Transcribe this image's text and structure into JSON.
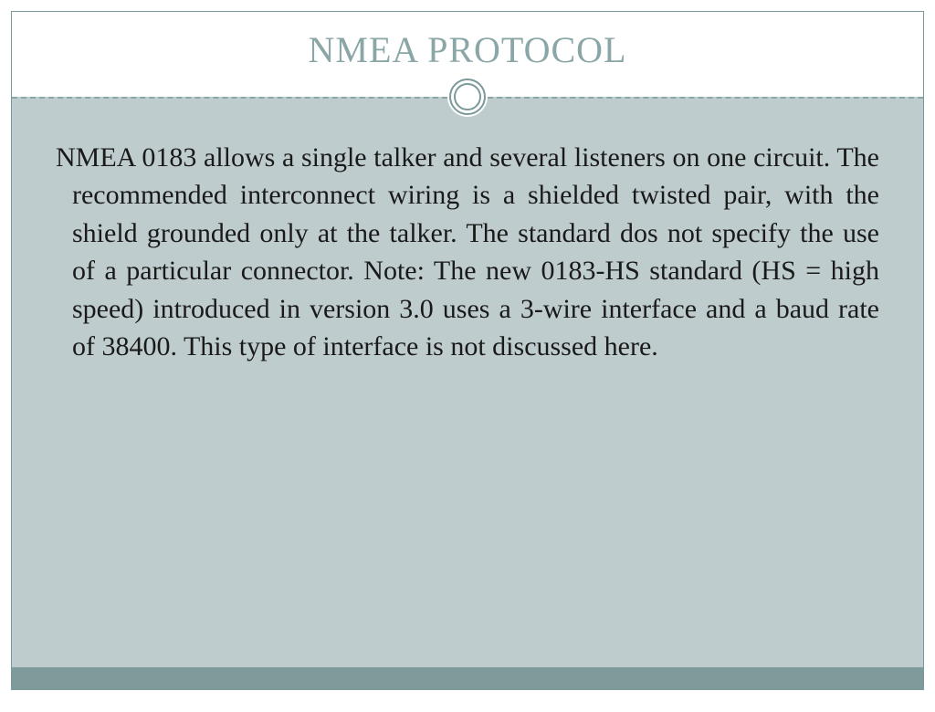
{
  "slide": {
    "title": "NMEA PROTOCOL",
    "title_color": "#8aa6a6",
    "title_fontsize": 40,
    "body_text": "NMEA 0183 allows a single talker and several listeners on one circuit. The recommended interconnect wiring is a shielded twisted pair, with the shield grounded only at the talker. The standard dos not specify the use of a particular connector. Note: The new 0183-HS standard (HS = high speed) introduced in version 3.0 uses a 3-wire interface and a baud rate of 38400. This type of interface is not discussed here.",
    "body_fontsize": 30,
    "body_color": "#1a1a1a",
    "header_bg": "#ffffff",
    "body_bg": "#bfccce",
    "footer_bg": "#7f9a9a",
    "border_color": "#7a9a9a",
    "ring_color": "#7a9a9a",
    "dash_color": "#8aa6a6"
  }
}
